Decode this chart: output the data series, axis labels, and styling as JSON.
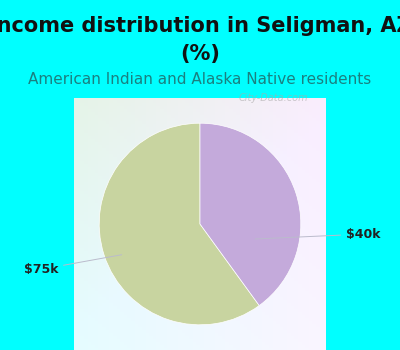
{
  "title_line1": "Income distribution in Seligman, AZ",
  "title_line2": "(%)",
  "subtitle": "American Indian and Alaska Native residents",
  "background_color": "#00FFFF",
  "slices": [
    {
      "label": "$75k",
      "value": 60,
      "color": "#C8D4A0"
    },
    {
      "label": "$40k",
      "value": 40,
      "color": "#C4AADB"
    }
  ],
  "title_fontsize": 15,
  "subtitle_fontsize": 11,
  "label_fontsize": 9,
  "startangle": 90,
  "label_color": "#222222",
  "line_color": "#BBBBCC",
  "watermark": "City-Data.com",
  "watermark_color": "#AAAAAA"
}
